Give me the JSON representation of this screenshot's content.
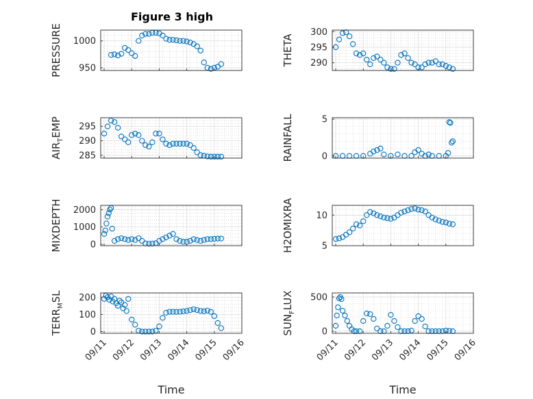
{
  "title": "Figure 3 high",
  "colors": {
    "marker": "#0072bd",
    "grid": "#c8c8c8",
    "axis": "#262626"
  },
  "chart_data": [
    {
      "type": "scatter",
      "ylabel_main": "PRESSURE",
      "ylabel_sub": "",
      "ylabel_tail": "",
      "ylim": [
        945,
        1020
      ],
      "yticks": [
        950,
        1000
      ],
      "ytick_labels": [
        "950",
        "1000"
      ],
      "grid": true,
      "x": [
        "09/11 06:00",
        "09/11 09:00",
        "09/11 12:00",
        "09/11 15:00",
        "09/11 18:00",
        "09/11 21:00",
        "09/12 00:00",
        "09/12 03:00",
        "09/12 06:00",
        "09/12 09:00",
        "09/12 12:00",
        "09/12 15:00",
        "09/12 18:00",
        "09/12 21:00",
        "09/13 00:00",
        "09/13 03:00",
        "09/13 06:00",
        "09/13 09:00",
        "09/13 12:00",
        "09/13 15:00",
        "09/13 18:00",
        "09/13 21:00",
        "09/14 00:00",
        "09/14 03:00",
        "09/14 06:00",
        "09/14 09:00",
        "09/14 12:00",
        "09/14 15:00",
        "09/14 18:00",
        "09/14 21:00",
        "09/15 00:00",
        "09/15 03:00",
        "09/15 06:00"
      ],
      "y": [
        974,
        975,
        973,
        976,
        987,
        983,
        977,
        972,
        1000,
        1010,
        1013,
        1013,
        1015,
        1015,
        1014,
        1010,
        1004,
        1002,
        1002,
        1001,
        1000,
        1000,
        999,
        997,
        994,
        990,
        982,
        960,
        950,
        948,
        950,
        952,
        957
      ]
    },
    {
      "type": "scatter",
      "ylabel_main": "THETA",
      "ylabel_sub": "",
      "ylabel_tail": "",
      "ylim": [
        287.5,
        300.5
      ],
      "yticks": [
        290,
        295,
        300
      ],
      "ytick_labels": [
        "290",
        "295",
        "300"
      ],
      "grid": true,
      "x": [
        "09/11 00:00",
        "09/11 03:00",
        "09/11 06:00",
        "09/11 09:00",
        "09/11 12:00",
        "09/11 15:00",
        "09/11 18:00",
        "09/11 21:00",
        "09/12 00:00",
        "09/12 03:00",
        "09/12 06:00",
        "09/12 09:00",
        "09/12 12:00",
        "09/12 15:00",
        "09/12 18:00",
        "09/12 21:00",
        "09/13 00:00",
        "09/13 03:00",
        "09/13 06:00",
        "09/13 09:00",
        "09/13 12:00",
        "09/13 15:00",
        "09/13 18:00",
        "09/13 21:00",
        "09/14 00:00",
        "09/14 03:00",
        "09/14 06:00",
        "09/14 09:00",
        "09/14 12:00",
        "09/14 15:00",
        "09/14 18:00",
        "09/14 21:00",
        "09/15 00:00",
        "09/15 03:00",
        "09/15 06:00"
      ],
      "y": [
        295,
        297.5,
        299.5,
        299.8,
        298.5,
        296,
        293,
        292.5,
        293,
        291,
        289.5,
        291.5,
        292,
        291,
        290,
        288.5,
        288,
        288,
        290,
        292.5,
        293,
        291.5,
        290,
        289.5,
        288.5,
        288.5,
        289.5,
        290,
        290,
        290.5,
        289.5,
        289.5,
        289,
        288.5,
        288
      ]
    },
    {
      "type": "scatter",
      "ylabel_main": "AIR",
      "ylabel_sub": "T",
      "ylabel_tail": "EMP",
      "ylim": [
        284,
        298
      ],
      "yticks": [
        285,
        290,
        295
      ],
      "ytick_labels": [
        "285",
        "290",
        "295"
      ],
      "grid": true,
      "x": [
        "09/11 00:00",
        "09/11 03:00",
        "09/11 06:00",
        "09/11 09:00",
        "09/11 12:00",
        "09/11 15:00",
        "09/11 18:00",
        "09/11 21:00",
        "09/12 00:00",
        "09/12 03:00",
        "09/12 06:00",
        "09/12 09:00",
        "09/12 12:00",
        "09/12 15:00",
        "09/12 18:00",
        "09/12 21:00",
        "09/13 00:00",
        "09/13 03:00",
        "09/13 06:00",
        "09/13 09:00",
        "09/13 12:00",
        "09/13 15:00",
        "09/13 18:00",
        "09/13 21:00",
        "09/14 00:00",
        "09/14 03:00",
        "09/14 06:00",
        "09/14 09:00",
        "09/14 12:00",
        "09/14 15:00",
        "09/14 18:00",
        "09/14 21:00",
        "09/15 00:00",
        "09/15 03:00",
        "09/15 06:00"
      ],
      "y": [
        292.5,
        295,
        297,
        296.5,
        294.5,
        291.5,
        290.5,
        289.5,
        292,
        292.5,
        292,
        290,
        288.5,
        288,
        289.5,
        292.5,
        292.5,
        290.5,
        289,
        288.5,
        289,
        289,
        289,
        289,
        289,
        288.5,
        287.5,
        286,
        285,
        284.8,
        284.6,
        284.5,
        284.5,
        284.5,
        284.5
      ]
    },
    {
      "type": "scatter",
      "ylabel_main": "RAINFALL",
      "ylabel_sub": "",
      "ylabel_tail": "",
      "ylim": [
        -0.3,
        5.2
      ],
      "yticks": [
        0,
        5
      ],
      "ytick_labels": [
        "0",
        "5"
      ],
      "grid": true,
      "x": [
        "09/11 00:00",
        "09/11 06:00",
        "09/11 12:00",
        "09/11 18:00",
        "09/12 00:00",
        "09/12 06:00",
        "09/12 09:00",
        "09/12 12:00",
        "09/12 15:00",
        "09/12 18:00",
        "09/13 00:00",
        "09/13 06:00",
        "09/13 12:00",
        "09/13 18:00",
        "09/13 21:00",
        "09/14 00:00",
        "09/14 03:00",
        "09/14 06:00",
        "09/14 09:00",
        "09/14 12:00",
        "09/14 18:00",
        "09/15 00:00",
        "09/15 02:00",
        "09/15 03:00",
        "09/15 04:00",
        "09/15 05:00",
        "09/15 06:00"
      ],
      "y": [
        0,
        0,
        0,
        0,
        0,
        0.3,
        0.6,
        0.8,
        1.0,
        0.2,
        0,
        0.2,
        0,
        0,
        0.5,
        0.8,
        0.3,
        0,
        0.2,
        0,
        0,
        0,
        0.4,
        4.6,
        4.5,
        1.8,
        2.0
      ]
    },
    {
      "type": "scatter",
      "ylabel_main": "MIXDEPTH",
      "ylabel_sub": "",
      "ylabel_tail": "",
      "ylim": [
        -80,
        2250
      ],
      "yticks": [
        0,
        1000,
        2000
      ],
      "ytick_labels": [
        "0",
        "1000",
        "2000"
      ],
      "grid": true,
      "x": [
        "09/11 00:00",
        "09/11 01:00",
        "09/11 02:00",
        "09/11 03:00",
        "09/11 04:00",
        "09/11 05:00",
        "09/11 06:00",
        "09/11 07:00",
        "09/11 09:00",
        "09/11 12:00",
        "09/11 15:00",
        "09/11 18:00",
        "09/11 21:00",
        "09/12 00:00",
        "09/12 03:00",
        "09/12 06:00",
        "09/12 09:00",
        "09/12 12:00",
        "09/12 15:00",
        "09/12 18:00",
        "09/12 21:00",
        "09/13 00:00",
        "09/13 03:00",
        "09/13 06:00",
        "09/13 09:00",
        "09/13 12:00",
        "09/13 15:00",
        "09/13 18:00",
        "09/13 21:00",
        "09/14 00:00",
        "09/14 03:00",
        "09/14 06:00",
        "09/14 09:00",
        "09/14 12:00",
        "09/14 15:00",
        "09/14 18:00",
        "09/14 21:00",
        "09/15 00:00",
        "09/15 03:00",
        "09/15 06:00"
      ],
      "y": [
        600,
        800,
        1200,
        1600,
        1800,
        2000,
        2100,
        900,
        200,
        300,
        350,
        300,
        250,
        300,
        250,
        350,
        200,
        50,
        30,
        40,
        60,
        200,
        300,
        400,
        500,
        600,
        300,
        200,
        150,
        150,
        200,
        300,
        250,
        200,
        250,
        300,
        300,
        320,
        330,
        330
      ]
    },
    {
      "type": "scatter",
      "ylabel_main": "H2OMIXRA",
      "ylabel_sub": "",
      "ylabel_tail": "",
      "ylim": [
        5,
        11.6
      ],
      "yticks": [
        5,
        10
      ],
      "ytick_labels": [
        "5",
        "10"
      ],
      "grid": true,
      "x": [
        "09/11 00:00",
        "09/11 03:00",
        "09/11 06:00",
        "09/11 09:00",
        "09/11 12:00",
        "09/11 15:00",
        "09/11 18:00",
        "09/11 21:00",
        "09/12 00:00",
        "09/12 03:00",
        "09/12 06:00",
        "09/12 09:00",
        "09/12 12:00",
        "09/12 15:00",
        "09/12 18:00",
        "09/12 21:00",
        "09/13 00:00",
        "09/13 03:00",
        "09/13 06:00",
        "09/13 09:00",
        "09/13 12:00",
        "09/13 15:00",
        "09/13 18:00",
        "09/13 21:00",
        "09/14 00:00",
        "09/14 03:00",
        "09/14 06:00",
        "09/14 09:00",
        "09/14 12:00",
        "09/14 15:00",
        "09/14 18:00",
        "09/14 21:00",
        "09/15 00:00",
        "09/15 03:00",
        "09/15 06:00"
      ],
      "y": [
        6.1,
        6.2,
        6.4,
        6.8,
        7.2,
        7.8,
        8.5,
        8.3,
        9.0,
        10.0,
        10.5,
        10.3,
        10.0,
        9.8,
        9.6,
        9.5,
        9.4,
        9.6,
        10.0,
        10.4,
        10.6,
        10.8,
        11.0,
        11.1,
        10.9,
        10.8,
        10.6,
        10.0,
        9.6,
        9.3,
        9.1,
        8.9,
        8.8,
        8.6,
        8.5
      ]
    },
    {
      "type": "scatter",
      "ylabel_main": "TERR",
      "ylabel_sub": "M",
      "ylabel_tail": "SL",
      "ylim": [
        -10,
        225
      ],
      "yticks": [
        0,
        100,
        200
      ],
      "ytick_labels": [
        "0",
        "100",
        "200"
      ],
      "grid": true,
      "x": [
        "09/11 00:00",
        "09/11 01:30",
        "09/11 03:00",
        "09/11 04:30",
        "09/11 06:00",
        "09/11 07:30",
        "09/11 09:00",
        "09/11 10:30",
        "09/11 12:00",
        "09/11 13:30",
        "09/11 15:00",
        "09/11 16:30",
        "09/11 18:00",
        "09/11 19:30",
        "09/11 21:00",
        "09/12 00:00",
        "09/12 03:00",
        "09/12 06:00",
        "09/12 09:00",
        "09/12 12:00",
        "09/12 15:00",
        "09/12 18:00",
        "09/12 21:00",
        "09/13 00:00",
        "09/13 03:00",
        "09/13 06:00",
        "09/13 09:00",
        "09/13 12:00",
        "09/13 15:00",
        "09/13 18:00",
        "09/13 21:00",
        "09/14 00:00",
        "09/14 03:00",
        "09/14 06:00",
        "09/14 09:00",
        "09/14 12:00",
        "09/14 15:00",
        "09/14 18:00",
        "09/14 21:00",
        "09/15 00:00",
        "09/15 03:00",
        "09/15 06:00"
      ],
      "y": [
        190,
        210,
        200,
        185,
        205,
        175,
        190,
        165,
        150,
        180,
        170,
        135,
        155,
        120,
        190,
        70,
        40,
        5,
        0,
        0,
        0,
        0,
        5,
        30,
        80,
        110,
        115,
        115,
        115,
        115,
        118,
        120,
        125,
        130,
        125,
        120,
        118,
        122,
        115,
        90,
        50,
        20
      ]
    },
    {
      "type": "scatter",
      "ylabel_main": "SUN",
      "ylabel_sub": "F",
      "ylabel_tail": "LUX",
      "ylim": [
        -30,
        560
      ],
      "yticks": [
        0,
        500
      ],
      "ytick_labels": [
        "0",
        "500"
      ],
      "grid": true,
      "x": [
        "09/11 00:00",
        "09/11 01:00",
        "09/11 02:00",
        "09/11 03:00",
        "09/11 04:00",
        "09/11 05:00",
        "09/11 06:00",
        "09/11 08:00",
        "09/11 10:00",
        "09/11 12:00",
        "09/11 14:00",
        "09/11 16:00",
        "09/11 18:00",
        "09/11 21:00",
        "09/12 00:00",
        "09/12 03:00",
        "09/12 06:00",
        "09/12 09:00",
        "09/12 12:00",
        "09/12 15:00",
        "09/12 18:00",
        "09/12 21:00",
        "09/13 00:00",
        "09/13 03:00",
        "09/13 06:00",
        "09/13 09:00",
        "09/13 12:00",
        "09/13 15:00",
        "09/13 18:00",
        "09/13 21:00",
        "09/14 00:00",
        "09/14 03:00",
        "09/14 06:00",
        "09/14 09:00",
        "09/14 12:00",
        "09/14 15:00",
        "09/14 18:00",
        "09/14 21:00",
        "09/15 00:00",
        "09/15 03:00",
        "09/15 06:00"
      ],
      "y": [
        80,
        230,
        350,
        480,
        500,
        470,
        300,
        230,
        150,
        80,
        30,
        0,
        0,
        0,
        150,
        260,
        250,
        180,
        40,
        0,
        0,
        80,
        240,
        150,
        60,
        0,
        0,
        0,
        10,
        150,
        220,
        180,
        70,
        0,
        0,
        0,
        0,
        0,
        10,
        5,
        0
      ]
    }
  ],
  "xaxis": {
    "ticks": [
      "09/11",
      "09/12",
      "09/13",
      "09/14",
      "09/15",
      "09/16"
    ],
    "label": "Time"
  }
}
